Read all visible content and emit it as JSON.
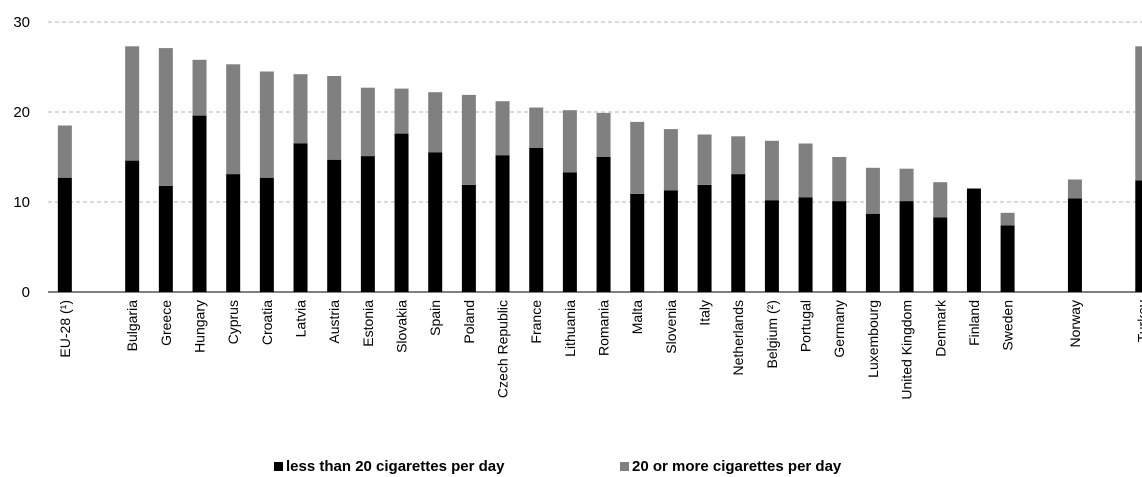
{
  "chart_data": {
    "type": "bar",
    "stacked": true,
    "categories": [
      "EU-28 (¹)",
      "",
      "Bulgaria",
      "Greece",
      "Hungary",
      "Cyprus",
      "Croatia",
      "Latvia",
      "Austria",
      "Estonia",
      "Slovakia",
      "Spain",
      "Poland",
      "Czech Republic",
      "France",
      "Lithuania",
      "Romania",
      "Malta",
      "Slovenia",
      "Italy",
      "Netherlands",
      "Belgium (²)",
      "Portugal",
      "Germany",
      "Luxembourg",
      "United Kingdom",
      "Denmark",
      "Finland",
      "Sweden",
      "",
      "Norway",
      "",
      "Turkey"
    ],
    "series": [
      {
        "name": "less than 20 cigarettes per day",
        "color": "#000000",
        "values": [
          12.7,
          null,
          14.6,
          11.8,
          19.6,
          13.1,
          12.7,
          16.5,
          14.7,
          15.1,
          17.6,
          15.5,
          11.9,
          15.2,
          16.0,
          13.3,
          15.0,
          10.9,
          11.3,
          11.9,
          13.1,
          10.2,
          10.5,
          10.1,
          8.7,
          10.1,
          8.3,
          11.5,
          7.4,
          null,
          10.4,
          null,
          12.4
        ]
      },
      {
        "name": "20 or more cigarettes per day",
        "color": "#808080",
        "values": [
          5.8,
          null,
          12.7,
          15.3,
          6.2,
          12.2,
          11.8,
          7.7,
          9.3,
          7.6,
          5.0,
          6.7,
          10.0,
          6.0,
          4.5,
          6.9,
          4.9,
          8.0,
          6.8,
          5.6,
          4.2,
          6.6,
          6.0,
          4.9,
          5.1,
          3.6,
          3.9,
          0.0,
          1.4,
          null,
          2.1,
          null,
          14.9
        ]
      }
    ],
    "ylim": [
      0,
      30
    ],
    "yticks": [
      0,
      10,
      20,
      30
    ],
    "grid": true,
    "legend_position": "bottom",
    "title": "",
    "xlabel": "",
    "ylabel": ""
  }
}
